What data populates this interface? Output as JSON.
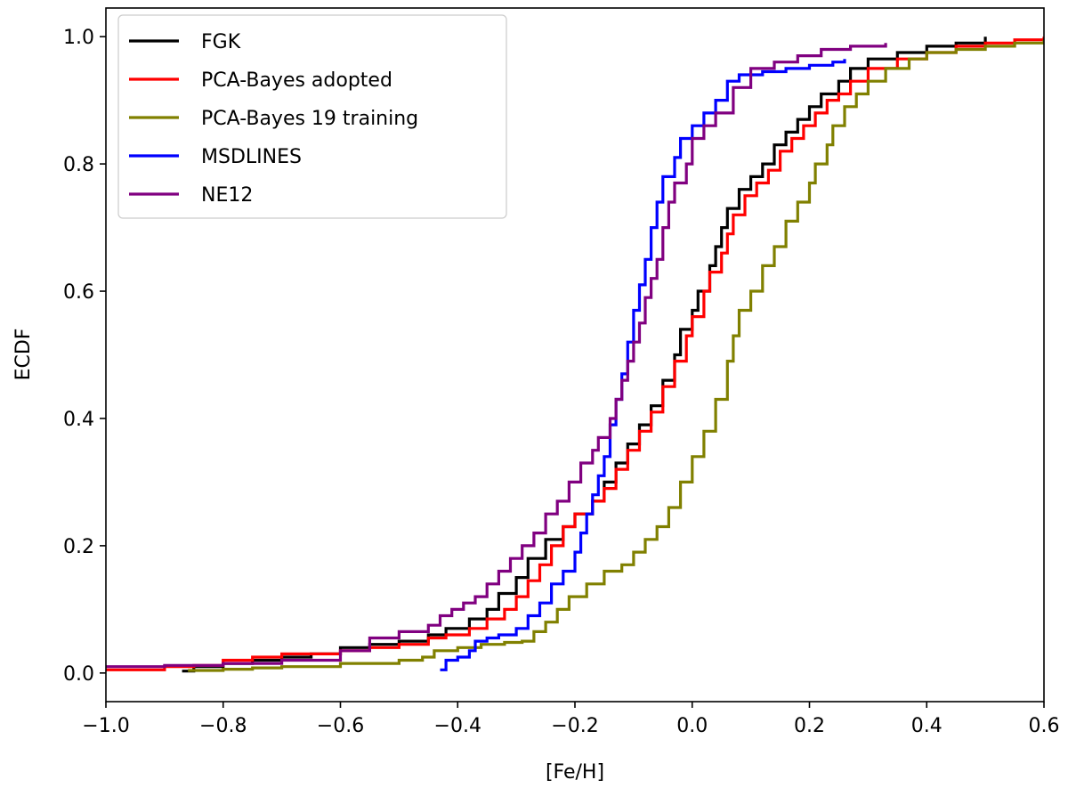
{
  "chart_data": {
    "type": "line",
    "title": "",
    "xlabel": "[Fe/H]",
    "ylabel": "ECDF",
    "xlim": [
      -1.0,
      0.6
    ],
    "ylim": [
      -0.045,
      1.045
    ],
    "xticks": [
      "−1.0",
      "−0.8",
      "−0.6",
      "−0.4",
      "−0.2",
      "0.0",
      "0.2",
      "0.4",
      "0.6"
    ],
    "yticks": [
      "0.0",
      "0.2",
      "0.4",
      "0.6",
      "0.8",
      "1.0"
    ],
    "grid": false,
    "legend_position": "top-left",
    "series": [
      {
        "name": "FGK",
        "color": "#000000",
        "points": [
          [
            -0.87,
            0.003
          ],
          [
            -0.85,
            0.01
          ],
          [
            -0.8,
            0.015
          ],
          [
            -0.75,
            0.02
          ],
          [
            -0.7,
            0.025
          ],
          [
            -0.65,
            0.03
          ],
          [
            -0.6,
            0.04
          ],
          [
            -0.55,
            0.045
          ],
          [
            -0.5,
            0.05
          ],
          [
            -0.45,
            0.06
          ],
          [
            -0.42,
            0.07
          ],
          [
            -0.38,
            0.085
          ],
          [
            -0.35,
            0.1
          ],
          [
            -0.33,
            0.125
          ],
          [
            -0.3,
            0.15
          ],
          [
            -0.28,
            0.18
          ],
          [
            -0.25,
            0.21
          ],
          [
            -0.22,
            0.23
          ],
          [
            -0.2,
            0.25
          ],
          [
            -0.17,
            0.27
          ],
          [
            -0.15,
            0.3
          ],
          [
            -0.13,
            0.33
          ],
          [
            -0.11,
            0.36
          ],
          [
            -0.09,
            0.39
          ],
          [
            -0.07,
            0.42
          ],
          [
            -0.05,
            0.46
          ],
          [
            -0.03,
            0.5
          ],
          [
            -0.02,
            0.54
          ],
          [
            0.0,
            0.57
          ],
          [
            0.01,
            0.6
          ],
          [
            0.03,
            0.64
          ],
          [
            0.04,
            0.67
          ],
          [
            0.05,
            0.7
          ],
          [
            0.06,
            0.73
          ],
          [
            0.08,
            0.76
          ],
          [
            0.1,
            0.78
          ],
          [
            0.12,
            0.8
          ],
          [
            0.14,
            0.83
          ],
          [
            0.16,
            0.85
          ],
          [
            0.18,
            0.87
          ],
          [
            0.2,
            0.89
          ],
          [
            0.22,
            0.91
          ],
          [
            0.25,
            0.93
          ],
          [
            0.27,
            0.95
          ],
          [
            0.3,
            0.965
          ],
          [
            0.35,
            0.975
          ],
          [
            0.4,
            0.985
          ],
          [
            0.45,
            0.99
          ],
          [
            0.5,
            1.0
          ]
        ]
      },
      {
        "name": "PCA-Bayes adopted",
        "color": "#ff0000",
        "points": [
          [
            -1.0,
            0.005
          ],
          [
            -0.9,
            0.01
          ],
          [
            -0.85,
            0.012
          ],
          [
            -0.8,
            0.02
          ],
          [
            -0.75,
            0.025
          ],
          [
            -0.7,
            0.03
          ],
          [
            -0.6,
            0.035
          ],
          [
            -0.55,
            0.04
          ],
          [
            -0.5,
            0.045
          ],
          [
            -0.45,
            0.055
          ],
          [
            -0.42,
            0.06
          ],
          [
            -0.38,
            0.07
          ],
          [
            -0.35,
            0.085
          ],
          [
            -0.32,
            0.1
          ],
          [
            -0.3,
            0.12
          ],
          [
            -0.28,
            0.145
          ],
          [
            -0.26,
            0.17
          ],
          [
            -0.24,
            0.2
          ],
          [
            -0.22,
            0.23
          ],
          [
            -0.2,
            0.25
          ],
          [
            -0.17,
            0.27
          ],
          [
            -0.15,
            0.29
          ],
          [
            -0.13,
            0.32
          ],
          [
            -0.11,
            0.35
          ],
          [
            -0.09,
            0.38
          ],
          [
            -0.07,
            0.41
          ],
          [
            -0.05,
            0.45
          ],
          [
            -0.03,
            0.49
          ],
          [
            -0.01,
            0.53
          ],
          [
            0.0,
            0.56
          ],
          [
            0.02,
            0.6
          ],
          [
            0.03,
            0.63
          ],
          [
            0.05,
            0.66
          ],
          [
            0.06,
            0.69
          ],
          [
            0.07,
            0.72
          ],
          [
            0.09,
            0.75
          ],
          [
            0.11,
            0.77
          ],
          [
            0.13,
            0.79
          ],
          [
            0.15,
            0.82
          ],
          [
            0.17,
            0.84
          ],
          [
            0.19,
            0.86
          ],
          [
            0.21,
            0.88
          ],
          [
            0.23,
            0.9
          ],
          [
            0.25,
            0.91
          ],
          [
            0.27,
            0.93
          ],
          [
            0.3,
            0.95
          ],
          [
            0.35,
            0.965
          ],
          [
            0.4,
            0.975
          ],
          [
            0.45,
            0.985
          ],
          [
            0.5,
            0.99
          ],
          [
            0.55,
            0.995
          ],
          [
            0.6,
            1.0
          ]
        ]
      },
      {
        "name": "PCA-Bayes 19 training",
        "color": "#808000",
        "points": [
          [
            -0.86,
            0.004
          ],
          [
            -0.8,
            0.006
          ],
          [
            -0.75,
            0.008
          ],
          [
            -0.7,
            0.01
          ],
          [
            -0.6,
            0.015
          ],
          [
            -0.5,
            0.02
          ],
          [
            -0.46,
            0.025
          ],
          [
            -0.44,
            0.035
          ],
          [
            -0.4,
            0.04
          ],
          [
            -0.36,
            0.045
          ],
          [
            -0.32,
            0.048
          ],
          [
            -0.29,
            0.05
          ],
          [
            -0.27,
            0.065
          ],
          [
            -0.25,
            0.08
          ],
          [
            -0.23,
            0.1
          ],
          [
            -0.21,
            0.12
          ],
          [
            -0.18,
            0.14
          ],
          [
            -0.15,
            0.16
          ],
          [
            -0.12,
            0.17
          ],
          [
            -0.1,
            0.19
          ],
          [
            -0.08,
            0.21
          ],
          [
            -0.06,
            0.23
          ],
          [
            -0.04,
            0.26
          ],
          [
            -0.02,
            0.3
          ],
          [
            0.0,
            0.34
          ],
          [
            0.02,
            0.38
          ],
          [
            0.04,
            0.43
          ],
          [
            0.06,
            0.49
          ],
          [
            0.07,
            0.53
          ],
          [
            0.08,
            0.57
          ],
          [
            0.1,
            0.6
          ],
          [
            0.12,
            0.64
          ],
          [
            0.14,
            0.67
          ],
          [
            0.16,
            0.71
          ],
          [
            0.18,
            0.74
          ],
          [
            0.2,
            0.77
          ],
          [
            0.21,
            0.8
          ],
          [
            0.23,
            0.83
          ],
          [
            0.24,
            0.86
          ],
          [
            0.26,
            0.89
          ],
          [
            0.28,
            0.91
          ],
          [
            0.3,
            0.93
          ],
          [
            0.33,
            0.95
          ],
          [
            0.37,
            0.965
          ],
          [
            0.4,
            0.975
          ],
          [
            0.45,
            0.98
          ],
          [
            0.5,
            0.985
          ],
          [
            0.55,
            0.99
          ],
          [
            0.6,
            0.995
          ]
        ]
      },
      {
        "name": "MSDLINES",
        "color": "#0000ff",
        "points": [
          [
            -0.43,
            0.005
          ],
          [
            -0.42,
            0.02
          ],
          [
            -0.4,
            0.025
          ],
          [
            -0.38,
            0.035
          ],
          [
            -0.37,
            0.05
          ],
          [
            -0.35,
            0.055
          ],
          [
            -0.33,
            0.06
          ],
          [
            -0.3,
            0.07
          ],
          [
            -0.28,
            0.09
          ],
          [
            -0.26,
            0.11
          ],
          [
            -0.24,
            0.14
          ],
          [
            -0.22,
            0.16
          ],
          [
            -0.2,
            0.19
          ],
          [
            -0.19,
            0.22
          ],
          [
            -0.18,
            0.25
          ],
          [
            -0.17,
            0.28
          ],
          [
            -0.16,
            0.31
          ],
          [
            -0.15,
            0.34
          ],
          [
            -0.14,
            0.39
          ],
          [
            -0.13,
            0.43
          ],
          [
            -0.12,
            0.47
          ],
          [
            -0.11,
            0.52
          ],
          [
            -0.1,
            0.57
          ],
          [
            -0.09,
            0.61
          ],
          [
            -0.08,
            0.65
          ],
          [
            -0.07,
            0.7
          ],
          [
            -0.06,
            0.74
          ],
          [
            -0.05,
            0.78
          ],
          [
            -0.03,
            0.81
          ],
          [
            -0.02,
            0.84
          ],
          [
            0.0,
            0.86
          ],
          [
            0.02,
            0.88
          ],
          [
            0.04,
            0.9
          ],
          [
            0.06,
            0.93
          ],
          [
            0.08,
            0.94
          ],
          [
            0.12,
            0.945
          ],
          [
            0.16,
            0.95
          ],
          [
            0.2,
            0.955
          ],
          [
            0.24,
            0.96
          ],
          [
            0.26,
            0.965
          ]
        ]
      },
      {
        "name": "NE12",
        "color": "#800080",
        "points": [
          [
            -1.0,
            0.01
          ],
          [
            -0.9,
            0.012
          ],
          [
            -0.8,
            0.015
          ],
          [
            -0.7,
            0.02
          ],
          [
            -0.6,
            0.035
          ],
          [
            -0.55,
            0.055
          ],
          [
            -0.5,
            0.065
          ],
          [
            -0.45,
            0.075
          ],
          [
            -0.43,
            0.09
          ],
          [
            -0.41,
            0.1
          ],
          [
            -0.39,
            0.11
          ],
          [
            -0.37,
            0.12
          ],
          [
            -0.35,
            0.14
          ],
          [
            -0.33,
            0.16
          ],
          [
            -0.31,
            0.18
          ],
          [
            -0.29,
            0.2
          ],
          [
            -0.27,
            0.22
          ],
          [
            -0.25,
            0.25
          ],
          [
            -0.23,
            0.27
          ],
          [
            -0.21,
            0.3
          ],
          [
            -0.19,
            0.33
          ],
          [
            -0.17,
            0.35
          ],
          [
            -0.16,
            0.37
          ],
          [
            -0.14,
            0.4
          ],
          [
            -0.13,
            0.43
          ],
          [
            -0.12,
            0.46
          ],
          [
            -0.11,
            0.49
          ],
          [
            -0.1,
            0.52
          ],
          [
            -0.09,
            0.55
          ],
          [
            -0.08,
            0.59
          ],
          [
            -0.07,
            0.62
          ],
          [
            -0.06,
            0.65
          ],
          [
            -0.05,
            0.7
          ],
          [
            -0.04,
            0.74
          ],
          [
            -0.03,
            0.77
          ],
          [
            -0.01,
            0.8
          ],
          [
            0.0,
            0.84
          ],
          [
            0.02,
            0.86
          ],
          [
            0.04,
            0.88
          ],
          [
            0.07,
            0.92
          ],
          [
            0.1,
            0.95
          ],
          [
            0.14,
            0.96
          ],
          [
            0.18,
            0.97
          ],
          [
            0.22,
            0.98
          ],
          [
            0.27,
            0.985
          ],
          [
            0.33,
            0.99
          ]
        ]
      }
    ]
  }
}
